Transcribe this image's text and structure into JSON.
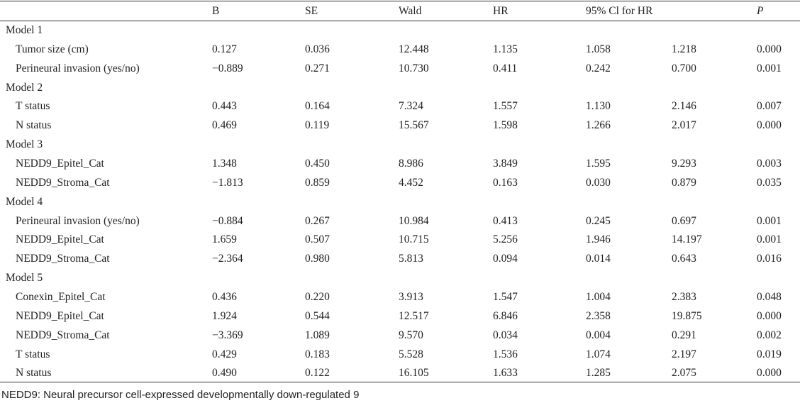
{
  "header": {
    "col0": "",
    "B": "B",
    "SE": "SE",
    "Wald": "Wald",
    "HR": "HR",
    "CI": "95% Cl for HR",
    "P": "P"
  },
  "rows": [
    {
      "type": "group",
      "label": "Model 1"
    },
    {
      "type": "data",
      "label": "Tumor size (cm)",
      "B": "0.127",
      "SE": "0.036",
      "Wald": "12.448",
      "HR": "1.135",
      "ci_low": "1.058",
      "ci_high": "1.218",
      "P": "0.000"
    },
    {
      "type": "data",
      "label": "Perineural invasion (yes/no)",
      "B": "−0.889",
      "SE": "0.271",
      "Wald": "10.730",
      "HR": "0.411",
      "ci_low": "0.242",
      "ci_high": "0.700",
      "P": "0.001"
    },
    {
      "type": "group",
      "label": "Model 2"
    },
    {
      "type": "data",
      "label": "T status",
      "B": "0.443",
      "SE": "0.164",
      "Wald": "7.324",
      "HR": "1.557",
      "ci_low": "1.130",
      "ci_high": "2.146",
      "P": "0.007"
    },
    {
      "type": "data",
      "label": "N status",
      "B": "0.469",
      "SE": "0.119",
      "Wald": "15.567",
      "HR": "1.598",
      "ci_low": "1.266",
      "ci_high": "2.017",
      "P": "0.000"
    },
    {
      "type": "group",
      "label": "Model 3"
    },
    {
      "type": "data",
      "label": "NEDD9_Epitel_Cat",
      "B": "1.348",
      "SE": "0.450",
      "Wald": "8.986",
      "HR": "3.849",
      "ci_low": "1.595",
      "ci_high": "9.293",
      "P": "0.003"
    },
    {
      "type": "data",
      "label": "NEDD9_Stroma_Cat",
      "B": "−1.813",
      "SE": "0.859",
      "Wald": "4.452",
      "HR": "0.163",
      "ci_low": "0.030",
      "ci_high": "0.879",
      "P": "0.035"
    },
    {
      "type": "group",
      "label": "Model 4"
    },
    {
      "type": "data",
      "label": "Perineural invasion (yes/no)",
      "B": "−0.884",
      "SE": "0.267",
      "Wald": "10.984",
      "HR": "0.413",
      "ci_low": "0.245",
      "ci_high": "0.697",
      "P": "0.001"
    },
    {
      "type": "data",
      "label": "NEDD9_Epitel_Cat",
      "B": "1.659",
      "SE": "0.507",
      "Wald": "10.715",
      "HR": "5.256",
      "ci_low": "1.946",
      "ci_high": "14.197",
      "P": "0.001"
    },
    {
      "type": "data",
      "label": "NEDD9_Stroma_Cat",
      "B": "−2.364",
      "SE": "0.980",
      "Wald": "5.813",
      "HR": "0.094",
      "ci_low": "0.014",
      "ci_high": "0.643",
      "P": "0.016"
    },
    {
      "type": "group",
      "label": "Model 5"
    },
    {
      "type": "data",
      "label": "Conexin_Epitel_Cat",
      "B": "0.436",
      "SE": "0.220",
      "Wald": "3.913",
      "HR": "1.547",
      "ci_low": "1.004",
      "ci_high": "2.383",
      "P": "0.048"
    },
    {
      "type": "data",
      "label": "NEDD9_Epitel_Cat",
      "B": "1.924",
      "SE": "0.544",
      "Wald": "12.517",
      "HR": "6.846",
      "ci_low": "2.358",
      "ci_high": "19.875",
      "P": "0.000"
    },
    {
      "type": "data",
      "label": "NEDD9_Stroma_Cat",
      "B": "−3.369",
      "SE": "1.089",
      "Wald": "9.570",
      "HR": "0.034",
      "ci_low": "0.004",
      "ci_high": "0.291",
      "P": "0.002"
    },
    {
      "type": "data",
      "label": "T status",
      "B": "0.429",
      "SE": "0.183",
      "Wald": "5.528",
      "HR": "1.536",
      "ci_low": "1.074",
      "ci_high": "2.197",
      "P": "0.019"
    },
    {
      "type": "data",
      "label": "N status",
      "B": "0.490",
      "SE": "0.122",
      "Wald": "16.105",
      "HR": "1.633",
      "ci_low": "1.285",
      "ci_high": "2.075",
      "P": "0.000"
    }
  ],
  "footnote": "NEDD9: Neural precursor cell-expressed developmentally down-regulated 9"
}
